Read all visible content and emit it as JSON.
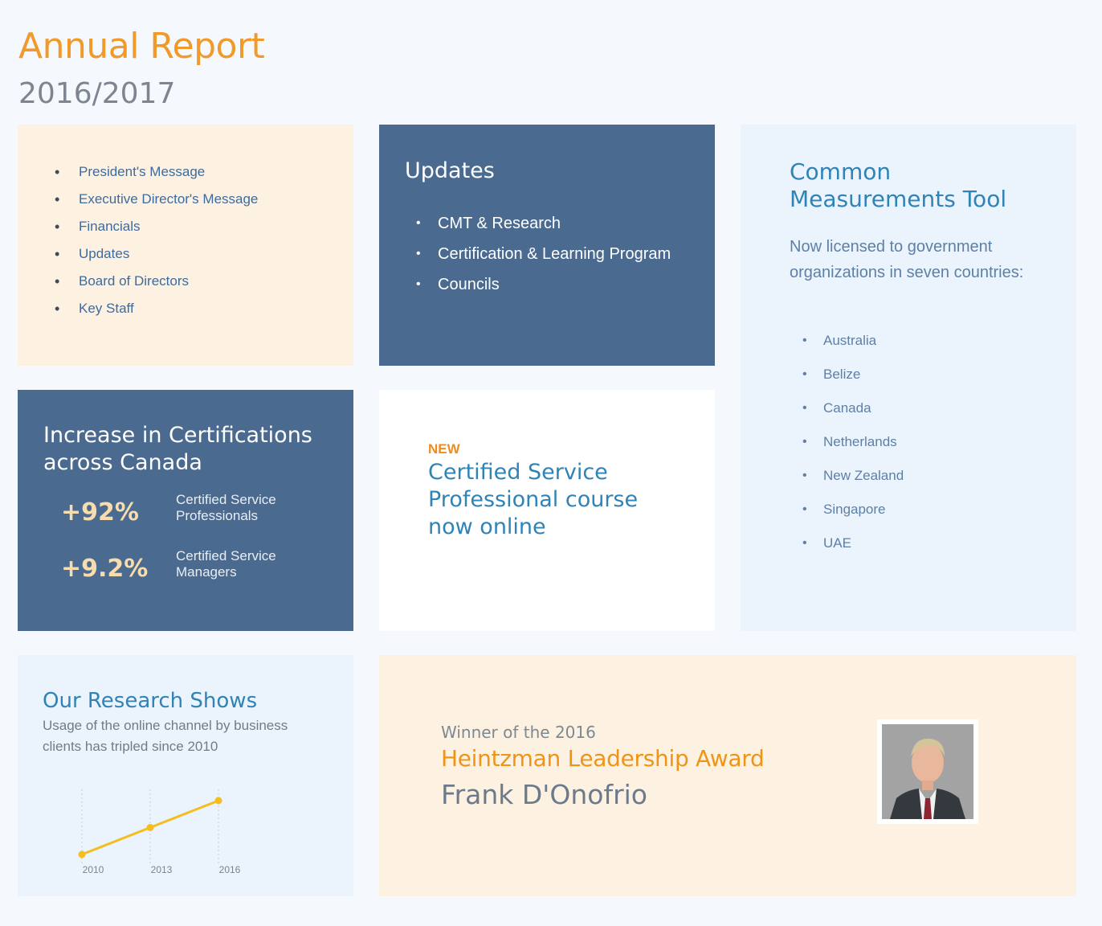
{
  "header": {
    "title": "Annual Report",
    "subtitle": "2016/2017"
  },
  "toc": {
    "items": [
      "President's Message",
      "Executive Director's Message",
      "Financials",
      "Updates",
      "Board of Directors",
      "Key Staff"
    ]
  },
  "updates": {
    "title": "Updates",
    "items": [
      "CMT & Research",
      "Certification & Learning Program",
      "Councils"
    ]
  },
  "cmt": {
    "title": "Common Measurements Tool",
    "description": "Now licensed to government organizations in seven countries:",
    "countries": [
      "Australia",
      "Belize",
      "Canada",
      "Netherlands",
      "New Zealand",
      "Singapore",
      "UAE"
    ]
  },
  "increase": {
    "title": "Increase in Certifications across Canada",
    "stats": [
      {
        "value": "+92%",
        "label": "Certified Service Professionals"
      },
      {
        "value": "+9.2%",
        "label": "Certified Service Managers"
      }
    ]
  },
  "course": {
    "badge": "NEW",
    "title": "Certified Service Professional course now online"
  },
  "research": {
    "title": "Our Research Shows",
    "description": "Usage of the online channel by business clients has tripled since 2010",
    "line_color": "#f5bd1f"
  },
  "chart_data": {
    "type": "line",
    "x": [
      "2010",
      "2013",
      "2016"
    ],
    "series": [
      {
        "values": [
          1,
          2,
          3
        ]
      }
    ],
    "title": "",
    "xlabel": "",
    "ylabel": "",
    "grid": true
  },
  "award": {
    "winner_text": "Winner of the 2016",
    "award_name": "Heintzman Leadership Award",
    "person": "Frank D'Onofrio"
  },
  "colors": {
    "accent_orange": "#ef9a2a",
    "navy": "#4a6a90",
    "cream": "#fdf2e1",
    "blue_text": "#2f83b6"
  }
}
